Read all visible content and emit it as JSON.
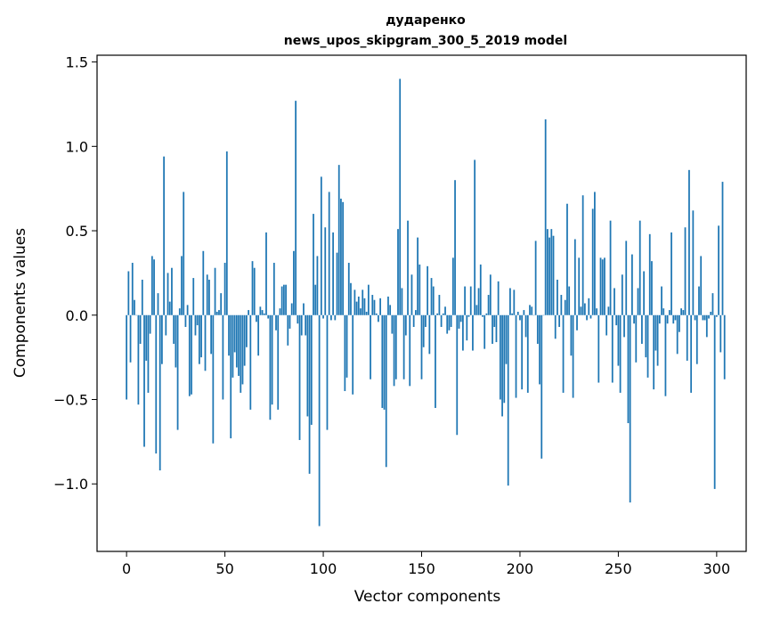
{
  "chart_data": {
    "type": "bar",
    "title": "дударенко",
    "subtitle": "news_upos_skipgram_300_5_2019 model",
    "xlabel": "Vector components",
    "ylabel": "Components values",
    "xlim": [
      -15,
      315
    ],
    "ylim": [
      -1.4,
      1.54
    ],
    "x_ticks": [
      0,
      50,
      100,
      150,
      200,
      250,
      300
    ],
    "x_tick_labels": [
      "0",
      "50",
      "100",
      "150",
      "200",
      "250",
      "300"
    ],
    "y_ticks": [
      -1.0,
      -0.5,
      0.0,
      0.5,
      1.0,
      1.5
    ],
    "y_tick_labels": [
      "−1.0",
      "−0.5",
      "0.0",
      "0.5",
      "1.0",
      "1.5"
    ],
    "bar_color": "#1f77b4",
    "grid": false,
    "values": [
      -0.5,
      0.26,
      -0.28,
      0.31,
      0.09,
      0.0,
      -0.53,
      -0.17,
      0.21,
      -0.78,
      -0.27,
      -0.46,
      -0.11,
      0.35,
      0.33,
      -0.82,
      0.13,
      -0.92,
      -0.29,
      0.94,
      -0.12,
      0.25,
      0.08,
      0.28,
      -0.17,
      -0.31,
      -0.68,
      0.04,
      0.35,
      0.73,
      -0.07,
      0.06,
      -0.48,
      -0.47,
      0.22,
      -0.12,
      -0.06,
      -0.29,
      -0.25,
      0.38,
      -0.33,
      0.24,
      0.21,
      -0.23,
      -0.76,
      0.28,
      0.02,
      0.03,
      0.13,
      -0.5,
      0.31,
      0.97,
      -0.24,
      -0.73,
      -0.37,
      -0.22,
      -0.31,
      -0.36,
      -0.46,
      -0.41,
      -0.3,
      -0.19,
      0.03,
      -0.56,
      0.32,
      0.28,
      -0.04,
      -0.24,
      0.05,
      0.03,
      0.01,
      0.49,
      -0.02,
      -0.62,
      -0.53,
      0.31,
      -0.09,
      -0.56,
      0.04,
      0.17,
      0.18,
      0.18,
      -0.18,
      -0.08,
      0.07,
      0.38,
      1.27,
      -0.05,
      -0.74,
      -0.12,
      0.07,
      -0.12,
      -0.6,
      -0.94,
      -0.65,
      0.6,
      0.18,
      0.35,
      -1.25,
      0.82,
      -0.02,
      0.52,
      -0.68,
      0.73,
      -0.03,
      0.49,
      -0.03,
      0.37,
      0.89,
      0.69,
      0.67,
      -0.45,
      -0.37,
      0.31,
      0.19,
      -0.47,
      0.15,
      0.08,
      0.11,
      0.04,
      0.15,
      0.1,
      0.02,
      0.18,
      -0.38,
      0.12,
      0.09,
      0.01,
      -0.04,
      0.1,
      -0.55,
      -0.56,
      -0.9,
      0.11,
      0.06,
      -0.11,
      -0.42,
      -0.38,
      0.51,
      1.4,
      0.16,
      -0.38,
      -0.12,
      0.56,
      -0.42,
      0.24,
      -0.07,
      0.03,
      0.46,
      0.3,
      -0.38,
      -0.19,
      -0.07,
      0.29,
      -0.23,
      0.22,
      0.17,
      -0.55,
      0.01,
      0.12,
      -0.07,
      0.01,
      0.05,
      -0.11,
      -0.09,
      -0.07,
      0.34,
      0.8,
      -0.71,
      -0.08,
      -0.04,
      -0.21,
      0.17,
      -0.15,
      -0.01,
      0.17,
      -0.21,
      0.92,
      0.06,
      0.16,
      0.3,
      -0.01,
      -0.2,
      0.01,
      0.12,
      0.24,
      -0.17,
      -0.07,
      -0.16,
      0.2,
      -0.5,
      -0.6,
      -0.52,
      -0.29,
      -1.01,
      0.16,
      0.01,
      0.15,
      -0.49,
      0.02,
      -0.03,
      -0.44,
      0.03,
      -0.13,
      -0.46,
      0.06,
      0.05,
      0.0,
      0.44,
      -0.17,
      -0.41,
      -0.85,
      0.0,
      1.16,
      0.51,
      0.46,
      0.51,
      0.47,
      -0.14,
      0.21,
      -0.07,
      0.12,
      -0.46,
      0.09,
      0.66,
      0.17,
      -0.24,
      -0.49,
      0.45,
      -0.09,
      0.34,
      0.05,
      0.71,
      0.07,
      -0.03,
      0.1,
      -0.02,
      0.63,
      0.73,
      0.04,
      -0.4,
      0.34,
      0.33,
      0.34,
      -0.12,
      0.05,
      0.56,
      -0.4,
      0.16,
      -0.06,
      -0.3,
      -0.46,
      0.24,
      -0.13,
      0.44,
      -0.64,
      -1.11,
      0.36,
      -0.05,
      -0.28,
      0.16,
      0.56,
      -0.17,
      0.26,
      -0.25,
      -0.37,
      0.48,
      0.32,
      -0.44,
      -0.21,
      -0.3,
      -0.05,
      0.17,
      0.04,
      -0.48,
      -0.05,
      0.03,
      0.49,
      -0.05,
      -0.03,
      -0.23,
      -0.1,
      0.04,
      0.03,
      0.52,
      -0.27,
      0.86,
      -0.46,
      0.62,
      -0.03,
      -0.29,
      0.17,
      0.35,
      -0.03,
      -0.03,
      -0.13,
      -0.02,
      0.02,
      0.13,
      -1.03,
      -0.01,
      0.53,
      -0.22,
      0.79,
      -0.38
    ]
  }
}
